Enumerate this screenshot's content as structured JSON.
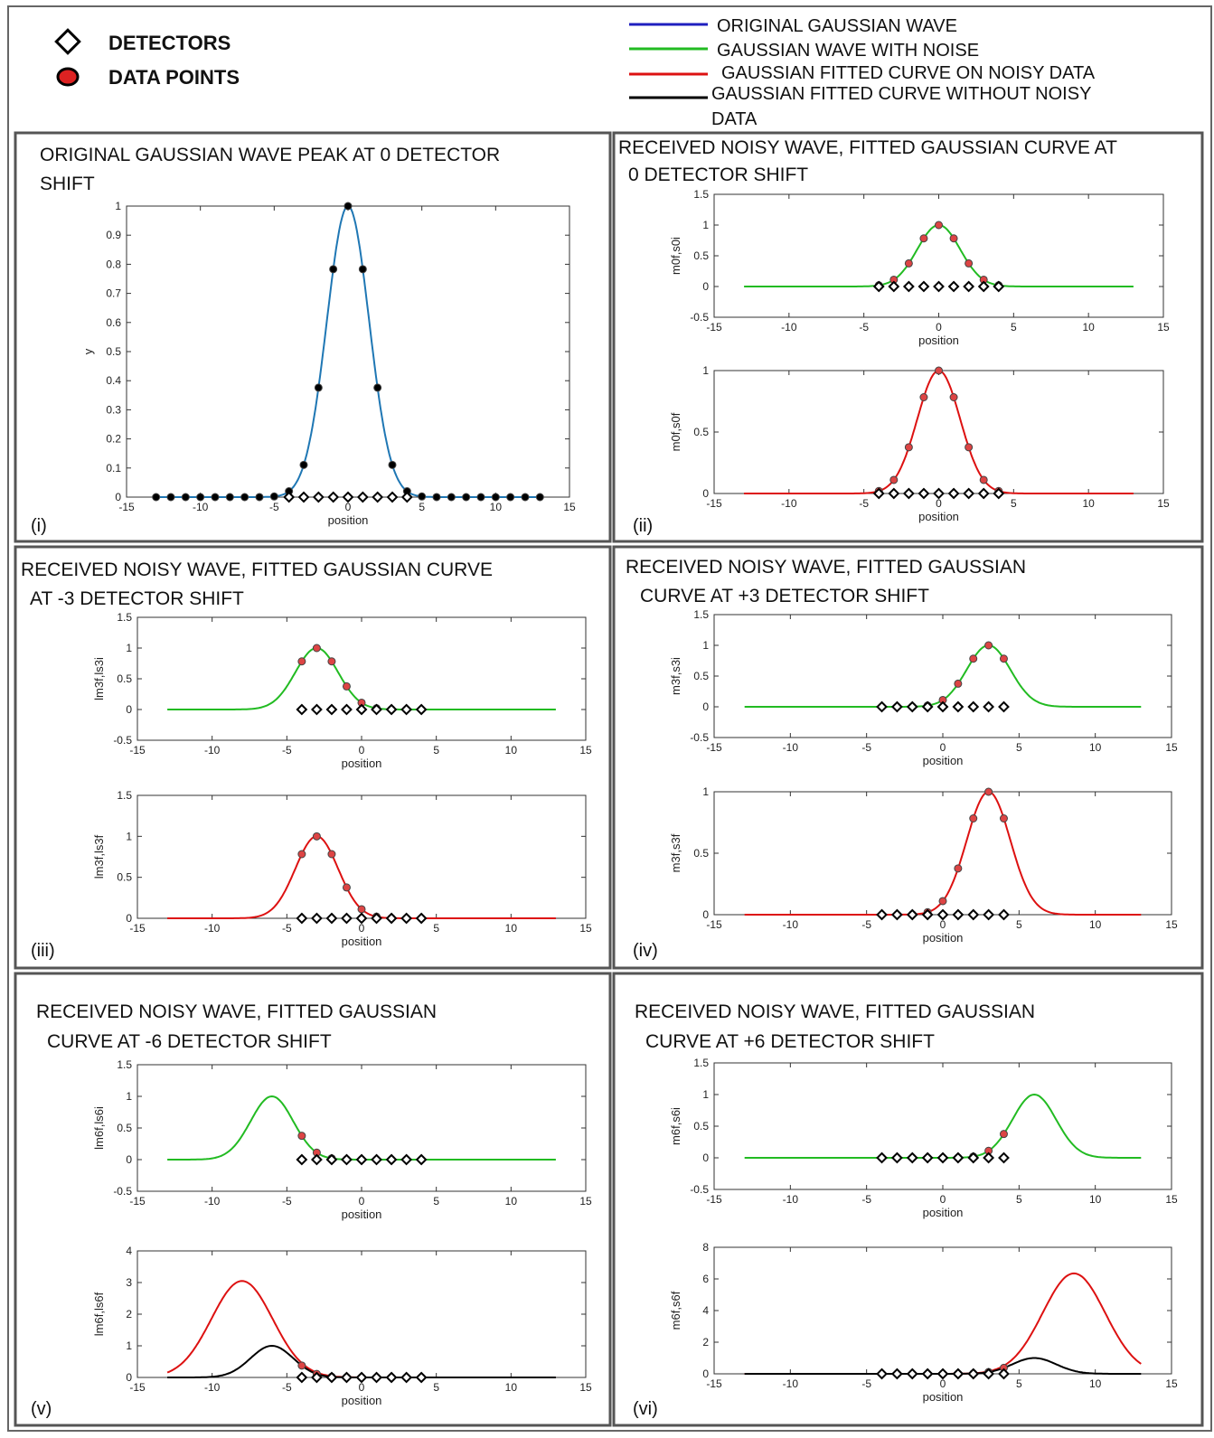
{
  "legend": {
    "detectors": "DETECTORS",
    "data_points": "DATA POINTS",
    "original": "ORIGINAL GAUSSIAN WAVE",
    "noise": "GAUSSIAN WAVE WITH NOISE",
    "fit_noisy": "GAUSSIAN FITTED CURVE ON NOISY DATA",
    "fit_clean_line1": "GAUSSIAN FITTED CURVE WITHOUT NOISY",
    "fit_clean_line2": "DATA",
    "colors": {
      "original": "#1f1fbf",
      "noise": "#22bb22",
      "fit_noisy": "#dd1111",
      "fit_clean": "#000000",
      "data_point": "#dd2222"
    }
  },
  "panels": [
    {
      "title1": "ORIGINAL GAUSSIAN WAVE PEAK AT 0 DETECTOR",
      "title2": "SHIFT",
      "label": "(i)"
    },
    {
      "title1": "RECEIVED NOISY WAVE, FITTED GAUSSIAN CURVE AT",
      "title2": "0 DETECTOR SHIFT",
      "label": "(ii)"
    },
    {
      "title1": "RECEIVED NOISY WAVE, FITTED GAUSSIAN CURVE",
      "title2": "AT -3 DETECTOR SHIFT",
      "label": "(iii)"
    },
    {
      "title1": "RECEIVED NOISY WAVE, FITTED GAUSSIAN",
      "title2": "CURVE AT +3 DETECTOR SHIFT",
      "label": "(iv)"
    },
    {
      "title1": "RECEIVED NOISY WAVE, FITTED GAUSSIAN",
      "title2": "CURVE AT -6 DETECTOR SHIFT",
      "label": "(v)"
    },
    {
      "title1": "RECEIVED NOISY WAVE, FITTED GAUSSIAN",
      "title2": "CURVE AT +6 DETECTOR SHIFT",
      "label": "(vi)"
    }
  ],
  "chart_data": [
    {
      "id": "p1",
      "type": "line",
      "xlabel": "position",
      "ylabel": "y",
      "xlim": [
        -15,
        15
      ],
      "ylim": [
        0,
        1
      ],
      "xticks": [
        -15,
        -10,
        -5,
        0,
        5,
        10,
        15
      ],
      "yticks": [
        0,
        0.1,
        0.2,
        0.3,
        0.4,
        0.5,
        0.6,
        0.7,
        0.8,
        0.9,
        1
      ],
      "x_range": [
        -13,
        13
      ],
      "series": [
        {
          "kind": "original",
          "color": "#1f77b4",
          "center": 0,
          "amp": 1,
          "sigma": 1.43
        }
      ],
      "data_points": {
        "x": [
          -13,
          -12,
          -11,
          -10,
          -9,
          -8,
          -7,
          -6,
          -5,
          -4,
          -3,
          -2,
          -1,
          0,
          1,
          2,
          3,
          4,
          5,
          6,
          7,
          8,
          9,
          10,
          11,
          12,
          13
        ],
        "color": "#000000"
      },
      "detectors": [
        -4,
        -3,
        -2,
        -1,
        0,
        1,
        2,
        3,
        4
      ],
      "detector_y": 0
    },
    {
      "id": "p2a",
      "type": "line",
      "xlabel": "position",
      "ylabel": "m0f,s0i",
      "xlim": [
        -15,
        15
      ],
      "ylim": [
        -0.5,
        1.5
      ],
      "xticks": [
        -15,
        -10,
        -5,
        0,
        5,
        10,
        15
      ],
      "yticks": [
        -0.5,
        0,
        0.5,
        1,
        1.5
      ],
      "x_range": [
        -13,
        13
      ],
      "series": [
        {
          "kind": "noise",
          "color": "#22bb22",
          "center": 0,
          "amp": 1,
          "sigma": 1.43
        }
      ],
      "data_points": {
        "x": [
          -4,
          -3,
          -2,
          -1,
          0,
          1,
          2,
          3,
          4
        ],
        "color": "#dd4444"
      },
      "detectors": [
        -4,
        -3,
        -2,
        -1,
        0,
        1,
        2,
        3,
        4
      ],
      "detector_y": 0
    },
    {
      "id": "p2b",
      "type": "line",
      "xlabel": "position",
      "ylabel": "m0f,s0f",
      "xlim": [
        -15,
        15
      ],
      "ylim": [
        0,
        1
      ],
      "xticks": [
        -15,
        -10,
        -5,
        0,
        5,
        10,
        15
      ],
      "yticks": [
        0,
        0.5,
        1
      ],
      "x_range": [
        -13,
        13
      ],
      "series": [
        {
          "kind": "fit_noisy",
          "color": "#dd1111",
          "center": 0,
          "amp": 1,
          "sigma": 1.43
        }
      ],
      "data_points": {
        "x": [
          -4,
          -3,
          -2,
          -1,
          0,
          1,
          2,
          3,
          4
        ],
        "color": "#dd4444"
      },
      "detectors": [
        -4,
        -3,
        -2,
        -1,
        0,
        1,
        2,
        3,
        4
      ],
      "detector_y": 0
    },
    {
      "id": "p3a",
      "type": "line",
      "xlabel": "position",
      "ylabel": "lm3f,ls3i",
      "xlim": [
        -15,
        15
      ],
      "ylim": [
        -0.5,
        1.5
      ],
      "xticks": [
        -15,
        -10,
        -5,
        0,
        5,
        10,
        15
      ],
      "yticks": [
        -0.5,
        0,
        0.5,
        1,
        1.5
      ],
      "x_range": [
        -13,
        13
      ],
      "series": [
        {
          "kind": "noise",
          "color": "#22bb22",
          "center": -3,
          "amp": 1,
          "sigma": 1.43
        }
      ],
      "data_points": {
        "x": [
          -4,
          -3,
          -2,
          -1,
          0,
          1,
          2,
          3,
          4
        ],
        "color": "#dd4444"
      },
      "detectors": [
        -4,
        -3,
        -2,
        -1,
        0,
        1,
        2,
        3,
        4
      ],
      "detector_y": 0
    },
    {
      "id": "p3b",
      "type": "line",
      "xlabel": "position",
      "ylabel": "lm3f,ls3f",
      "xlim": [
        -15,
        15
      ],
      "ylim": [
        0,
        1.5
      ],
      "xticks": [
        -15,
        -10,
        -5,
        0,
        5,
        10,
        15
      ],
      "yticks": [
        0,
        0.5,
        1,
        1.5
      ],
      "x_range": [
        -13,
        13
      ],
      "series": [
        {
          "kind": "fit_noisy",
          "color": "#dd1111",
          "center": -3,
          "amp": 1,
          "sigma": 1.43
        }
      ],
      "data_points": {
        "x": [
          -4,
          -3,
          -2,
          -1,
          0,
          1,
          2,
          3,
          4
        ],
        "color": "#dd4444"
      },
      "detectors": [
        -4,
        -3,
        -2,
        -1,
        0,
        1,
        2,
        3,
        4
      ],
      "detector_y": 0
    },
    {
      "id": "p4a",
      "type": "line",
      "xlabel": "position",
      "ylabel": "m3f,s3i",
      "xlim": [
        -15,
        15
      ],
      "ylim": [
        -0.5,
        1.5
      ],
      "xticks": [
        -15,
        -10,
        -5,
        0,
        5,
        10,
        15
      ],
      "yticks": [
        -0.5,
        0,
        0.5,
        1,
        1.5
      ],
      "x_range": [
        -13,
        13
      ],
      "series": [
        {
          "kind": "noise",
          "color": "#22bb22",
          "center": 3,
          "amp": 1,
          "sigma": 1.43
        }
      ],
      "data_points": {
        "x": [
          -4,
          -3,
          -2,
          -1,
          0,
          1,
          2,
          3,
          4
        ],
        "color": "#dd4444"
      },
      "detectors": [
        -4,
        -3,
        -2,
        -1,
        0,
        1,
        2,
        3,
        4
      ],
      "detector_y": 0
    },
    {
      "id": "p4b",
      "type": "line",
      "xlabel": "position",
      "ylabel": "m3f,s3f",
      "xlim": [
        -15,
        15
      ],
      "ylim": [
        0,
        1
      ],
      "xticks": [
        -15,
        -10,
        -5,
        0,
        5,
        10,
        15
      ],
      "yticks": [
        0,
        0.5,
        1
      ],
      "x_range": [
        -13,
        13
      ],
      "series": [
        {
          "kind": "fit_noisy",
          "color": "#dd1111",
          "center": 3,
          "amp": 1,
          "sigma": 1.43
        }
      ],
      "data_points": {
        "x": [
          -4,
          -3,
          -2,
          -1,
          0,
          1,
          2,
          3,
          4
        ],
        "color": "#dd4444"
      },
      "detectors": [
        -4,
        -3,
        -2,
        -1,
        0,
        1,
        2,
        3,
        4
      ],
      "detector_y": 0
    },
    {
      "id": "p5a",
      "type": "line",
      "xlabel": "position",
      "ylabel": "lm6f,ls6i",
      "xlim": [
        -15,
        15
      ],
      "ylim": [
        -0.5,
        1.5
      ],
      "xticks": [
        -15,
        -10,
        -5,
        0,
        5,
        10,
        15
      ],
      "yticks": [
        -0.5,
        0,
        0.5,
        1,
        1.5
      ],
      "x_range": [
        -13,
        13
      ],
      "series": [
        {
          "kind": "noise",
          "color": "#22bb22",
          "center": -6,
          "amp": 1,
          "sigma": 1.43
        }
      ],
      "data_points": {
        "x": [
          -4,
          -3,
          -2,
          -1,
          0,
          1,
          2,
          3,
          4
        ],
        "color": "#dd4444"
      },
      "detectors": [
        -4,
        -3,
        -2,
        -1,
        0,
        1,
        2,
        3,
        4
      ],
      "detector_y": 0
    },
    {
      "id": "p5b",
      "type": "line",
      "xlabel": "position",
      "ylabel": "lm6f,ls6f",
      "xlim": [
        -15,
        15
      ],
      "ylim": [
        0,
        4
      ],
      "xticks": [
        -15,
        -10,
        -5,
        0,
        5,
        10,
        15
      ],
      "yticks": [
        0,
        1,
        2,
        3,
        4
      ],
      "x_range": [
        -13,
        13
      ],
      "series": [
        {
          "kind": "fit_noisy",
          "color": "#dd1111",
          "center": -8,
          "amp": 3.05,
          "sigma": 2.05
        },
        {
          "kind": "fit_clean",
          "color": "#000000",
          "center": -6,
          "amp": 1,
          "sigma": 1.43
        }
      ],
      "data_points": {
        "x": [
          -4,
          -3,
          -2,
          -1,
          0,
          1,
          2,
          3,
          4
        ],
        "color": "#dd4444",
        "follow_series": 1
      },
      "detectors": [
        -4,
        -3,
        -2,
        -1,
        0,
        1,
        2,
        3,
        4
      ],
      "detector_y": 0
    },
    {
      "id": "p6a",
      "type": "line",
      "xlabel": "position",
      "ylabel": "m6f,s6i",
      "xlim": [
        -15,
        15
      ],
      "ylim": [
        -0.5,
        1.5
      ],
      "xticks": [
        -15,
        -10,
        -5,
        0,
        5,
        10,
        15
      ],
      "yticks": [
        -0.5,
        0,
        0.5,
        1,
        1.5
      ],
      "x_range": [
        -13,
        13
      ],
      "series": [
        {
          "kind": "noise",
          "color": "#22bb22",
          "center": 6,
          "amp": 1,
          "sigma": 1.43
        }
      ],
      "data_points": {
        "x": [
          -4,
          -3,
          -2,
          -1,
          0,
          1,
          2,
          3,
          4
        ],
        "color": "#dd4444"
      },
      "detectors": [
        -4,
        -3,
        -2,
        -1,
        0,
        1,
        2,
        3,
        4
      ],
      "detector_y": 0
    },
    {
      "id": "p6b",
      "type": "line",
      "xlabel": "position",
      "ylabel": "m6f,s6f",
      "xlim": [
        -15,
        15
      ],
      "ylim": [
        0,
        8
      ],
      "xticks": [
        -15,
        -10,
        -5,
        0,
        5,
        10,
        15
      ],
      "yticks": [
        0,
        2,
        4,
        6,
        8
      ],
      "x_range": [
        -13,
        13
      ],
      "series": [
        {
          "kind": "fit_noisy",
          "color": "#dd1111",
          "center": 8.6,
          "amp": 6.35,
          "sigma": 2.05
        },
        {
          "kind": "fit_clean",
          "color": "#000000",
          "center": 6,
          "amp": 1,
          "sigma": 1.43
        }
      ],
      "data_points": {
        "x": [
          -4,
          -3,
          -2,
          -1,
          0,
          1,
          2,
          3,
          4
        ],
        "color": "#dd4444",
        "follow_series": 1
      },
      "detectors": [
        -4,
        -3,
        -2,
        -1,
        0,
        1,
        2,
        3,
        4
      ],
      "detector_y": 0
    }
  ]
}
